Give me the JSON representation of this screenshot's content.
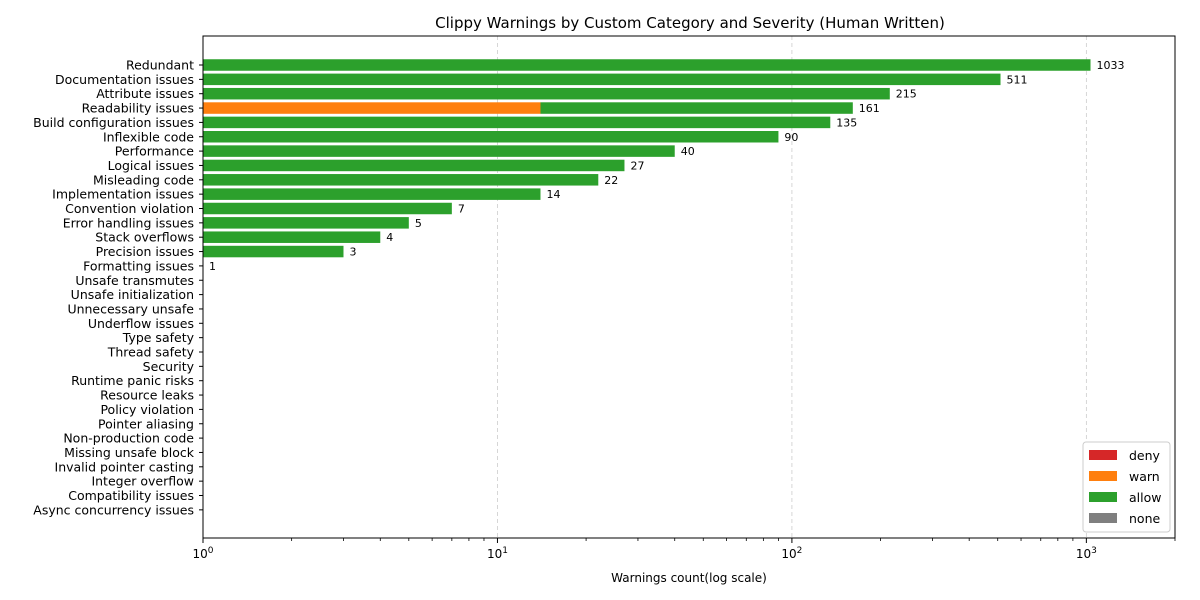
{
  "chart_data": {
    "type": "bar",
    "orientation": "horizontal",
    "stacked": true,
    "title": "Clippy Warnings by Custom Category and Severity (Human Written)",
    "xlabel": "Warnings count(log scale)",
    "ylabel": "",
    "xscale": "log",
    "xlim": [
      1,
      2000
    ],
    "x_ticks": [
      {
        "value": 1,
        "base": "10",
        "exp": "0"
      },
      {
        "value": 10,
        "base": "10",
        "exp": "1"
      },
      {
        "value": 100,
        "base": "10",
        "exp": "2"
      },
      {
        "value": 1000,
        "base": "10",
        "exp": "3"
      }
    ],
    "grid": "x-dashed",
    "legend_position": "lower-right",
    "categories": [
      "Redundant",
      "Documentation issues",
      "Attribute issues",
      "Readability issues",
      "Build configuration issues",
      "Inflexible code",
      "Performance",
      "Logical issues",
      "Misleading code",
      "Implementation issues",
      "Convention violation",
      "Error handling issues",
      "Stack overflows",
      "Precision issues",
      "Formatting issues",
      "Unsafe transmutes",
      "Unsafe initialization",
      "Unnecessary unsafe",
      "Underflow issues",
      "Type safety",
      "Thread safety",
      "Security",
      "Runtime panic risks",
      "Resource leaks",
      "Policy violation",
      "Pointer aliasing",
      "Non-production code",
      "Missing unsafe block",
      "Invalid pointer casting",
      "Integer overflow",
      "Compatibility issues",
      "Async concurrency issues"
    ],
    "series": [
      {
        "name": "deny",
        "color": "#d62728",
        "values": [
          0,
          0,
          0,
          0,
          0,
          0,
          0,
          0,
          0,
          0,
          0,
          0,
          0,
          0,
          0,
          0,
          0,
          0,
          0,
          0,
          0,
          0,
          0,
          0,
          0,
          0,
          0,
          0,
          0,
          0,
          0,
          0
        ]
      },
      {
        "name": "warn",
        "color": "#ff7f0e",
        "values": [
          0,
          0,
          0,
          14,
          0,
          0,
          0,
          0,
          0,
          0,
          0,
          0,
          0,
          0,
          0,
          0,
          0,
          0,
          0,
          0,
          0,
          0,
          0,
          0,
          0,
          0,
          0,
          0,
          0,
          0,
          0,
          0
        ]
      },
      {
        "name": "allow",
        "color": "#2ca02c",
        "values": [
          1033,
          511,
          215,
          147,
          135,
          90,
          40,
          27,
          22,
          14,
          7,
          5,
          4,
          3,
          1,
          0,
          0,
          0,
          0,
          0,
          0,
          0,
          0,
          0,
          0,
          0,
          0,
          0,
          0,
          0,
          0,
          0
        ]
      },
      {
        "name": "none",
        "color": "#7f7f7f",
        "values": [
          0,
          0,
          0,
          0,
          0,
          0,
          0,
          0,
          0,
          0,
          0,
          0,
          0,
          0,
          0,
          0,
          0,
          0,
          0,
          0,
          0,
          0,
          0,
          0,
          0,
          0,
          0,
          0,
          0,
          0,
          0,
          0
        ]
      }
    ],
    "totals": [
      1033,
      511,
      215,
      161,
      135,
      90,
      40,
      27,
      22,
      14,
      7,
      5,
      4,
      3,
      1,
      0,
      0,
      0,
      0,
      0,
      0,
      0,
      0,
      0,
      0,
      0,
      0,
      0,
      0,
      0,
      0,
      0
    ],
    "total_labels": [
      "1033",
      "511",
      "215",
      "161",
      "135",
      "90",
      "40",
      "27",
      "22",
      "14",
      "7",
      "5",
      "4",
      "3",
      "1"
    ]
  }
}
